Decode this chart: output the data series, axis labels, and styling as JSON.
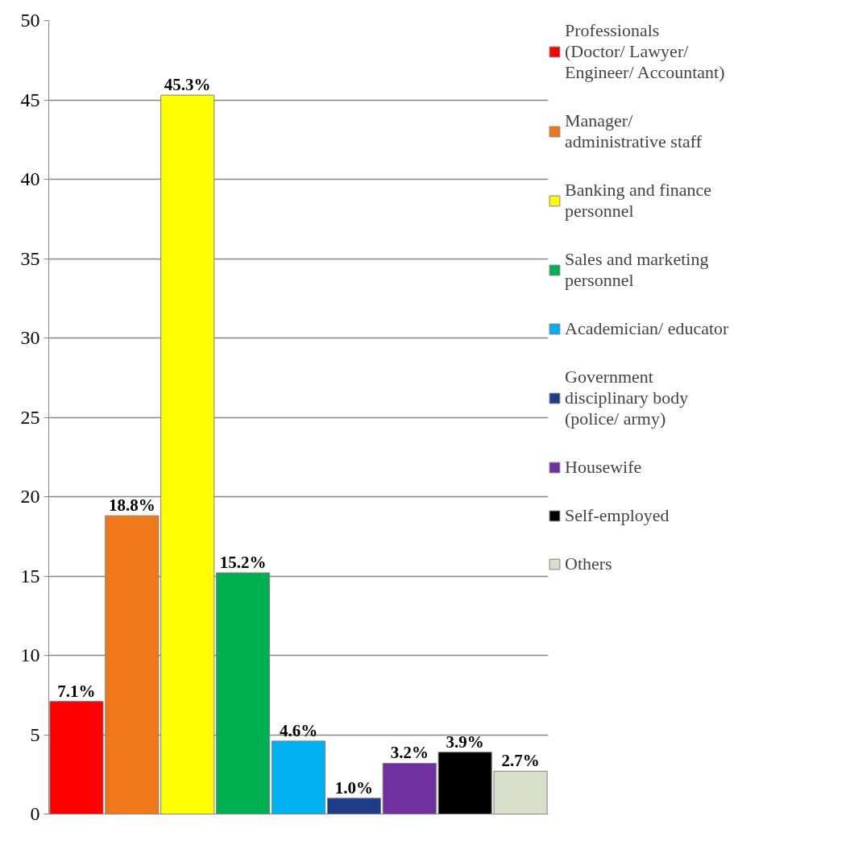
{
  "chart_data": {
    "type": "bar",
    "categories": [
      null,
      null,
      null,
      null,
      null,
      null,
      null,
      null,
      null
    ],
    "series": [
      {
        "name": "Professionals (Doctor/ Lawyer/ Engineer/ Accountant)",
        "color": "#ff0000",
        "values": [
          7.1,
          null,
          null,
          null,
          null,
          null,
          null,
          null,
          null
        ],
        "value_labels": [
          "7.1%",
          null,
          null,
          null,
          null,
          null,
          null,
          null,
          null
        ]
      },
      {
        "name": "Manager/ administrative staff",
        "color": "#f07818",
        "values": [
          null,
          18.8,
          null,
          null,
          null,
          null,
          null,
          null,
          null
        ],
        "value_labels": [
          null,
          "18.8%",
          null,
          null,
          null,
          null,
          null,
          null,
          null
        ]
      },
      {
        "name": "Banking and finance personnel",
        "color": "#ffff00",
        "values": [
          null,
          null,
          45.3,
          null,
          null,
          null,
          null,
          null,
          null
        ],
        "value_labels": [
          null,
          null,
          "45.3%",
          null,
          null,
          null,
          null,
          null,
          null
        ]
      },
      {
        "name": "Sales and marketing personnel",
        "color": "#00b050",
        "values": [
          null,
          null,
          null,
          15.2,
          null,
          null,
          null,
          null,
          null
        ],
        "value_labels": [
          null,
          null,
          null,
          "15.2%",
          null,
          null,
          null,
          null,
          null
        ]
      },
      {
        "name": "Academician/ educator",
        "color": "#00b0f0",
        "values": [
          null,
          null,
          null,
          null,
          4.6,
          null,
          null,
          null,
          null
        ],
        "value_labels": [
          null,
          null,
          null,
          null,
          "4.6%",
          null,
          null,
          null,
          null
        ]
      },
      {
        "name": "Government disciplinary body (police/ army)",
        "color": "#1f3c88",
        "values": [
          null,
          null,
          null,
          null,
          null,
          1.0,
          null,
          null,
          null
        ],
        "value_labels": [
          null,
          null,
          null,
          null,
          null,
          "1.0%",
          null,
          null,
          null
        ]
      },
      {
        "name": "Housewife",
        "color": "#7030a0",
        "values": [
          null,
          null,
          null,
          null,
          null,
          null,
          3.2,
          null,
          null
        ],
        "value_labels": [
          null,
          null,
          null,
          null,
          null,
          null,
          "3.2%",
          null,
          null
        ]
      },
      {
        "name": "Self-employed",
        "color": "#000000",
        "values": [
          null,
          null,
          null,
          null,
          null,
          null,
          null,
          3.9,
          null
        ],
        "value_labels": [
          null,
          null,
          null,
          null,
          null,
          null,
          null,
          "3.9%",
          null
        ]
      },
      {
        "name": "Others",
        "color": "#d8e0cc",
        "values": [
          null,
          null,
          null,
          null,
          null,
          null,
          null,
          null,
          2.7
        ],
        "value_labels": [
          null,
          null,
          null,
          null,
          null,
          null,
          null,
          null,
          "2.7%"
        ]
      }
    ],
    "ylim": [
      0,
      50
    ],
    "yticks": [
      0,
      5,
      10,
      15,
      20,
      25,
      30,
      35,
      40,
      45,
      50
    ],
    "grid": "y",
    "legend": "right"
  }
}
